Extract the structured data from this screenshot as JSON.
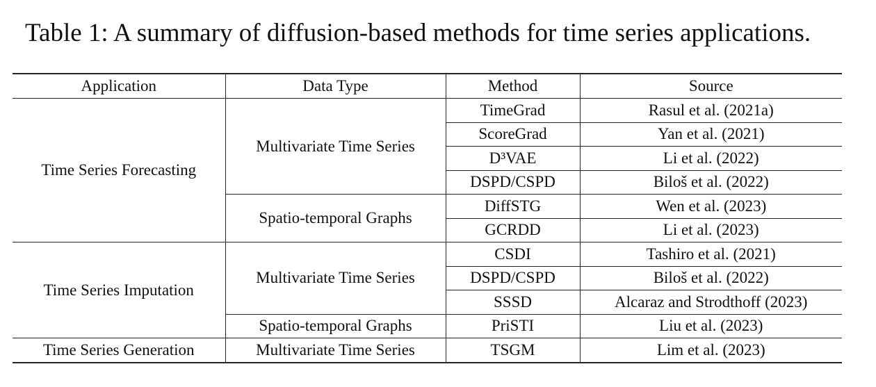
{
  "caption": "Table 1: A summary of diffusion-based methods for time series applications.",
  "table": {
    "header": [
      "Application",
      "Data Type",
      "Method",
      "Source"
    ],
    "groups": [
      {
        "application": "Time Series Forecasting",
        "data_types": [
          {
            "name": "Multivariate Time Series",
            "methods": [
              {
                "method": "TimeGrad",
                "source": "Rasul et al. (2021a)"
              },
              {
                "method": "ScoreGrad",
                "source": "Yan et al. (2021)"
              },
              {
                "method": "D³VAE",
                "source": "Li et al. (2022)"
              },
              {
                "method": "DSPD/CSPD",
                "source": "Biloš et al. (2022)"
              }
            ]
          },
          {
            "name": "Spatio-temporal Graphs",
            "methods": [
              {
                "method": "DiffSTG",
                "source": "Wen et al. (2023)"
              },
              {
                "method": "GCRDD",
                "source": "Li et al. (2023)"
              }
            ]
          }
        ]
      },
      {
        "application": "Time Series Imputation",
        "data_types": [
          {
            "name": "Multivariate Time Series",
            "methods": [
              {
                "method": "CSDI",
                "source": "Tashiro et al. (2021)"
              },
              {
                "method": "DSPD/CSPD",
                "source": "Biloš et al. (2022)"
              },
              {
                "method": "SSSD",
                "source": "Alcaraz and Strodthoff (2023)"
              }
            ]
          },
          {
            "name": "Spatio-temporal Graphs",
            "methods": [
              {
                "method": "PriSTI",
                "source": "Liu et al. (2023)"
              }
            ]
          }
        ]
      },
      {
        "application": "Time Series Generation",
        "data_types": [
          {
            "name": "Multivariate Time Series",
            "methods": [
              {
                "method": "TSGM",
                "source": "Lim et al. (2023)"
              }
            ]
          }
        ]
      }
    ]
  }
}
